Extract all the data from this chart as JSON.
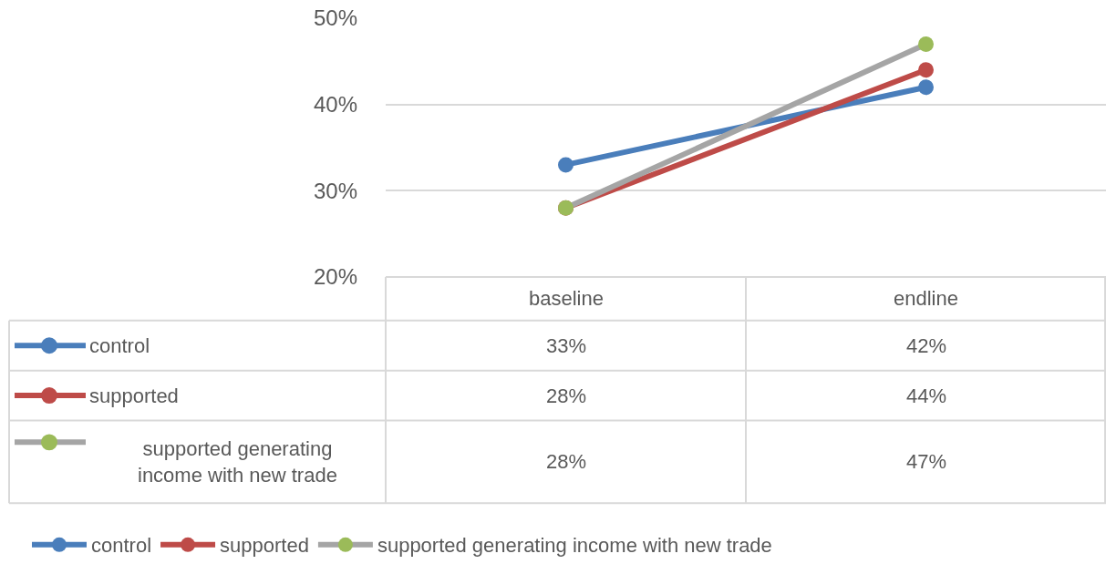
{
  "chart_data": {
    "type": "line",
    "categories": [
      "baseline",
      "endline"
    ],
    "series": [
      {
        "name": "control",
        "color": "#4a7ebb",
        "values": [
          33,
          42
        ],
        "value_labels": [
          "33%",
          "42%"
        ]
      },
      {
        "name": "supported",
        "color": "#be4b48",
        "values": [
          28,
          44
        ],
        "value_labels": [
          "28%",
          "44%"
        ]
      },
      {
        "name": "supported generating income with new trade",
        "color": "#a5a5a5",
        "colors": [
          "#9bbb59",
          "#9bbb59"
        ],
        "values": [
          28,
          47
        ],
        "value_labels": [
          "28%",
          "47%"
        ]
      }
    ],
    "ylim": [
      20,
      50
    ],
    "yticks": [
      {
        "value": 20,
        "label": "20%"
      },
      {
        "value": 30,
        "label": "30%"
      },
      {
        "value": 40,
        "label": "40%"
      },
      {
        "value": 50,
        "label": "50%"
      }
    ],
    "grid": "y",
    "marker": "circle",
    "line_style": "solid",
    "legend": "bottom"
  }
}
